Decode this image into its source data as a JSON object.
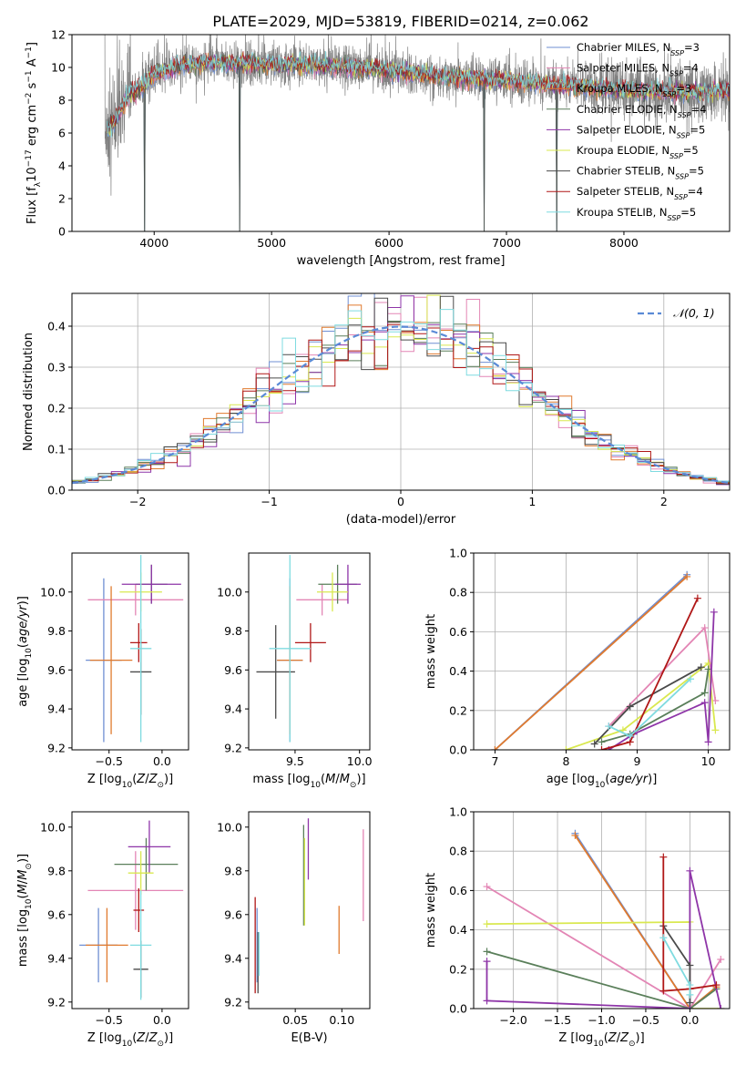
{
  "title": "PLATE=2029, MJD=53819, FIBERID=0214, z=0.062",
  "colors": {
    "Chabrier MILES": "#6f8fd3",
    "Salpeter MILES": "#e386b5",
    "Kroupa MILES": "#e07a2e",
    "Chabrier ELODIE": "#5a7f5a",
    "Salpeter ELODIE": "#8e35a8",
    "Kroupa ELODIE": "#d9e84f",
    "Chabrier STELIB": "#4a4a4a",
    "Salpeter STELIB": "#b01717",
    "Kroupa STELIB": "#7fdbe0"
  },
  "chart_data": [
    {
      "id": "spectrum",
      "type": "line",
      "xlabel": "wavelength [Angstrom, rest frame]",
      "ylabel": "Flux [f_λ 10^-17 erg cm^-2 s^-1 A^-1]",
      "xlim": [
        3300,
        8900
      ],
      "ylim": [
        0,
        12
      ],
      "xticks": [
        4000,
        5000,
        6000,
        7000,
        8000
      ],
      "yticks": [
        0,
        2,
        4,
        6,
        8,
        10,
        12
      ],
      "data_color": "#808080",
      "data_envelope": [
        [
          3580,
          6.0
        ],
        [
          3650,
          6.6
        ],
        [
          3700,
          7.2
        ],
        [
          3800,
          8.4
        ],
        [
          3900,
          8.8
        ],
        [
          4000,
          9.6
        ],
        [
          4100,
          9.8
        ],
        [
          4300,
          10.2
        ],
        [
          4500,
          10.3
        ],
        [
          5000,
          10.2
        ],
        [
          5500,
          10.1
        ],
        [
          6000,
          9.8
        ],
        [
          6500,
          9.4
        ],
        [
          7000,
          9.2
        ],
        [
          7500,
          8.9
        ],
        [
          8000,
          8.6
        ],
        [
          8500,
          8.5
        ],
        [
          8900,
          8.6
        ]
      ],
      "gaps": [
        3920,
        4730,
        6810,
        7430
      ],
      "legend": [
        "Chabrier MILES, N_SSP=3",
        "Salpeter MILES, N_SSP=4",
        "Kroupa MILES, N_SSP=3",
        "Chabrier ELODIE, N_SSP=4",
        "Salpeter ELODIE, N_SSP=5",
        "Kroupa ELODIE, N_SSP=5",
        "Chabrier STELIB, N_SSP=5",
        "Salpeter STELIB, N_SSP=4",
        "Kroupa STELIB, N_SSP=5"
      ],
      "legend_loc": "right"
    },
    {
      "id": "residuals",
      "type": "histogram",
      "xlabel": "(data-model)/error",
      "ylabel": "Normed distribution",
      "xlim": [
        -2.5,
        2.5
      ],
      "ylim": [
        0,
        0.48
      ],
      "xticks": [
        -2,
        -1,
        0,
        1,
        2
      ],
      "yticks": [
        0.0,
        0.1,
        0.2,
        0.3,
        0.4
      ],
      "bin_width": 0.1,
      "legend": [
        "N(0,1)"
      ],
      "legend_loc": "upper right",
      "grid": true
    },
    {
      "id": "age_vs_Z",
      "type": "errorbar",
      "xlabel": "Z [log10(Z/Z⊙)]",
      "ylabel": "age  [log10(age/yr)]",
      "xlim": [
        -0.85,
        0.25
      ],
      "ylim": [
        9.19,
        10.2
      ],
      "xticks": [
        -0.5,
        0.0
      ],
      "yticks": [
        9.2,
        9.4,
        9.6,
        9.8,
        10.0
      ],
      "points": [
        {
          "model": "Chabrier MILES",
          "x": -0.55,
          "y": 9.65,
          "xerr": 0.17,
          "yerr": 0.42
        },
        {
          "model": "Salpeter MILES",
          "x": -0.25,
          "y": 9.96,
          "xerr": 0.45,
          "yerr": 0.08
        },
        {
          "model": "Kroupa MILES",
          "x": -0.48,
          "y": 9.65,
          "xerr": 0.2,
          "yerr": 0.38
        },
        {
          "model": "Chabrier ELODIE",
          "x": -0.1,
          "y": 10.04,
          "xerr": 0.15,
          "yerr": 0.1
        },
        {
          "model": "Salpeter ELODIE",
          "x": -0.1,
          "y": 10.04,
          "xerr": 0.28,
          "yerr": 0.1
        },
        {
          "model": "Kroupa ELODIE",
          "x": -0.2,
          "y": 10.0,
          "xerr": 0.2,
          "yerr": 0.1
        },
        {
          "model": "Chabrier STELIB",
          "x": -0.2,
          "y": 9.59,
          "xerr": 0.1,
          "yerr": 0.22
        },
        {
          "model": "Salpeter STELIB",
          "x": -0.22,
          "y": 9.74,
          "xerr": 0.08,
          "yerr": 0.1
        },
        {
          "model": "Kroupa STELIB",
          "x": -0.2,
          "y": 9.71,
          "xerr": 0.1,
          "yerr": 0.48
        }
      ]
    },
    {
      "id": "age_vs_mass",
      "type": "errorbar",
      "xlabel": "mass [log10(M/M⊙)]",
      "xlim": [
        9.14,
        10.08
      ],
      "ylim": [
        9.19,
        10.2
      ],
      "xticks": [
        9.5,
        10.0
      ],
      "yticks": [
        9.2,
        9.4,
        9.6,
        9.8,
        10.0
      ],
      "points": [
        {
          "model": "Chabrier MILES",
          "x": 9.46,
          "y": 9.65,
          "xerr": 0.1,
          "yerr": 0.42
        },
        {
          "model": "Salpeter MILES",
          "x": 9.71,
          "y": 9.96,
          "xerr": 0.2,
          "yerr": 0.08
        },
        {
          "model": "Kroupa MILES",
          "x": 9.46,
          "y": 9.65,
          "xerr": 0.1,
          "yerr": 0.38
        },
        {
          "model": "Chabrier ELODIE",
          "x": 9.83,
          "y": 10.04,
          "xerr": 0.15,
          "yerr": 0.1
        },
        {
          "model": "Salpeter ELODIE",
          "x": 9.91,
          "y": 10.04,
          "xerr": 0.1,
          "yerr": 0.1
        },
        {
          "model": "Kroupa ELODIE",
          "x": 9.79,
          "y": 10.0,
          "xerr": 0.12,
          "yerr": 0.1
        },
        {
          "model": "Chabrier STELIB",
          "x": 9.35,
          "y": 9.59,
          "xerr": 0.15,
          "yerr": 0.24
        },
        {
          "model": "Salpeter STELIB",
          "x": 9.62,
          "y": 9.74,
          "xerr": 0.12,
          "yerr": 0.1
        },
        {
          "model": "Kroupa STELIB",
          "x": 9.46,
          "y": 9.71,
          "xerr": 0.16,
          "yerr": 0.48
        }
      ]
    },
    {
      "id": "weight_vs_age",
      "type": "line",
      "xlabel": "age  [log10(age/yr)]",
      "ylabel": "mass weight",
      "xlim": [
        6.7,
        10.3
      ],
      "ylim": [
        0,
        1.0
      ],
      "xticks": [
        7,
        8,
        9,
        10
      ],
      "yticks": [
        0.0,
        0.2,
        0.4,
        0.6,
        0.8,
        1.0
      ],
      "grid": true,
      "series": [
        {
          "model": "Chabrier MILES",
          "x": [
            7.0,
            9.7
          ],
          "y": [
            0.0,
            0.89
          ]
        },
        {
          "model": "Kroupa MILES",
          "x": [
            7.0,
            9.7
          ],
          "y": [
            0.0,
            0.88
          ]
        },
        {
          "model": "Salpeter MILES",
          "x": [
            8.6,
            9.95,
            10.1
          ],
          "y": [
            0.12,
            0.62,
            0.25
          ]
        },
        {
          "model": "Kroupa ELODIE",
          "x": [
            8.0,
            8.8,
            10.0,
            10.1
          ],
          "y": [
            0.0,
            0.1,
            0.44,
            0.1
          ]
        },
        {
          "model": "Chabrier ELODIE",
          "x": [
            8.5,
            8.9,
            9.95,
            10.0
          ],
          "y": [
            0.04,
            0.08,
            0.29,
            0.41
          ]
        },
        {
          "model": "Salpeter ELODIE",
          "x": [
            8.6,
            8.95,
            9.95,
            10.0,
            10.08
          ],
          "y": [
            0.0,
            0.08,
            0.24,
            0.04,
            0.7
          ]
        },
        {
          "model": "Chabrier STELIB",
          "x": [
            8.4,
            8.9,
            9.9
          ],
          "y": [
            0.03,
            0.22,
            0.42
          ]
        },
        {
          "model": "Salpeter STELIB",
          "x": [
            8.5,
            8.9,
            9.85
          ],
          "y": [
            0.0,
            0.04,
            0.77
          ]
        },
        {
          "model": "Kroupa STELIB",
          "x": [
            8.6,
            8.9,
            9.75
          ],
          "y": [
            0.12,
            0.07,
            0.36
          ]
        }
      ]
    },
    {
      "id": "mass_vs_Z",
      "type": "errorbar",
      "xlabel": "Z [log10(Z/Z⊙)]",
      "ylabel": "mass [log10(M/M⊙)]",
      "xlim": [
        -0.85,
        0.25
      ],
      "ylim": [
        9.17,
        10.07
      ],
      "xticks": [
        -0.5,
        0.0
      ],
      "yticks": [
        9.2,
        9.4,
        9.6,
        9.8,
        10.0
      ],
      "points": [
        {
          "model": "Chabrier MILES",
          "x": -0.6,
          "y": 9.46,
          "xerr": 0.18,
          "yerr": 0.17
        },
        {
          "model": "Salpeter MILES",
          "x": -0.25,
          "y": 9.71,
          "xerr": 0.45,
          "yerr": 0.18
        },
        {
          "model": "Kroupa MILES",
          "x": -0.52,
          "y": 9.46,
          "xerr": 0.2,
          "yerr": 0.17
        },
        {
          "model": "Chabrier ELODIE",
          "x": -0.15,
          "y": 9.83,
          "xerr": 0.3,
          "yerr": 0.12
        },
        {
          "model": "Salpeter ELODIE",
          "x": -0.12,
          "y": 9.91,
          "xerr": 0.2,
          "yerr": 0.12
        },
        {
          "model": "Kroupa ELODIE",
          "x": -0.2,
          "y": 9.79,
          "xerr": 0.12,
          "yerr": 0.1
        },
        {
          "model": "Chabrier STELIB",
          "x": -0.2,
          "y": 9.35,
          "xerr": 0.07,
          "yerr": 0.13
        },
        {
          "model": "Salpeter STELIB",
          "x": -0.22,
          "y": 9.62,
          "xerr": 0.05,
          "yerr": 0.1
        },
        {
          "model": "Kroupa STELIB",
          "x": -0.2,
          "y": 9.46,
          "xerr": 0.1,
          "yerr": 0.25
        }
      ]
    },
    {
      "id": "mass_vs_ebv",
      "type": "errorbar",
      "xlabel": "E(B-V)",
      "xlim": [
        0.0,
        0.13
      ],
      "ylim": [
        9.17,
        10.07
      ],
      "xticks": [
        0.05,
        0.1
      ],
      "yticks": [
        9.2,
        9.4,
        9.6,
        9.8,
        10.0
      ],
      "points": [
        {
          "model": "Chabrier MILES",
          "x": 0.009,
          "y": 9.46,
          "xerr": 0,
          "yerr": 0.17
        },
        {
          "model": "Salpeter MILES",
          "x": 0.123,
          "y": 9.78,
          "xerr": 0,
          "yerr": 0.21
        },
        {
          "model": "Kroupa MILES",
          "x": 0.097,
          "y": 9.53,
          "xerr": 0,
          "yerr": 0.11
        },
        {
          "model": "Chabrier ELODIE",
          "x": 0.059,
          "y": 9.78,
          "xerr": 0,
          "yerr": 0.23
        },
        {
          "model": "Salpeter ELODIE",
          "x": 0.064,
          "y": 9.9,
          "xerr": 0,
          "yerr": 0.14
        },
        {
          "model": "Kroupa ELODIE",
          "x": 0.06,
          "y": 9.75,
          "xerr": 0,
          "yerr": 0.2
        },
        {
          "model": "Chabrier STELIB",
          "x": 0.01,
          "y": 9.38,
          "xerr": 0,
          "yerr": 0.14
        },
        {
          "model": "Salpeter STELIB",
          "x": 0.007,
          "y": 9.46,
          "xerr": 0,
          "yerr": 0.22
        },
        {
          "model": "Kroupa STELIB",
          "x": 0.011,
          "y": 9.42,
          "xerr": 0,
          "yerr": 0.1
        }
      ]
    },
    {
      "id": "weight_vs_Z",
      "type": "line",
      "xlabel": "Z [log10(Z/Z⊙)]",
      "ylabel": "mass weight",
      "xlim": [
        -2.45,
        0.45
      ],
      "ylim": [
        0,
        1.0
      ],
      "xticks": [
        -2.0,
        -1.5,
        -1.0,
        -0.5,
        0.0
      ],
      "yticks": [
        0.0,
        0.2,
        0.4,
        0.6,
        0.8,
        1.0
      ],
      "grid": true,
      "series": [
        {
          "model": "Chabrier MILES",
          "x": [
            -1.3,
            0.0
          ],
          "y": [
            0.89,
            0.0
          ]
        },
        {
          "model": "Kroupa MILES",
          "x": [
            -1.3,
            0.0,
            0.3
          ],
          "y": [
            0.88,
            0.0,
            0.11
          ]
        },
        {
          "model": "Salpeter MILES",
          "x": [
            -2.3,
            0.0,
            0.35
          ],
          "y": [
            0.62,
            0.0,
            0.25
          ]
        },
        {
          "model": "Kroupa ELODIE",
          "x": [
            -2.3,
            0.0,
            0.0,
            0.35
          ],
          "y": [
            0.43,
            0.44,
            0.0,
            0.0
          ]
        },
        {
          "model": "Chabrier ELODIE",
          "x": [
            -2.3,
            0.0,
            0.3
          ],
          "y": [
            0.29,
            0.0,
            0.1
          ]
        },
        {
          "model": "Salpeter ELODIE",
          "x": [
            -2.3,
            -2.3,
            0.0,
            0.0,
            0.35
          ],
          "y": [
            0.24,
            0.04,
            0.0,
            0.7,
            0.0
          ]
        },
        {
          "model": "Chabrier STELIB",
          "x": [
            -0.3,
            0.0,
            0.0
          ],
          "y": [
            0.42,
            0.22,
            0.03
          ]
        },
        {
          "model": "Salpeter STELIB",
          "x": [
            -0.3,
            -0.3,
            0.0,
            0.3
          ],
          "y": [
            0.77,
            0.09,
            0.1,
            0.12
          ]
        },
        {
          "model": "Kroupa STELIB",
          "x": [
            -0.3,
            0.0,
            0.0
          ],
          "y": [
            0.36,
            0.12,
            0.07
          ]
        }
      ]
    }
  ]
}
